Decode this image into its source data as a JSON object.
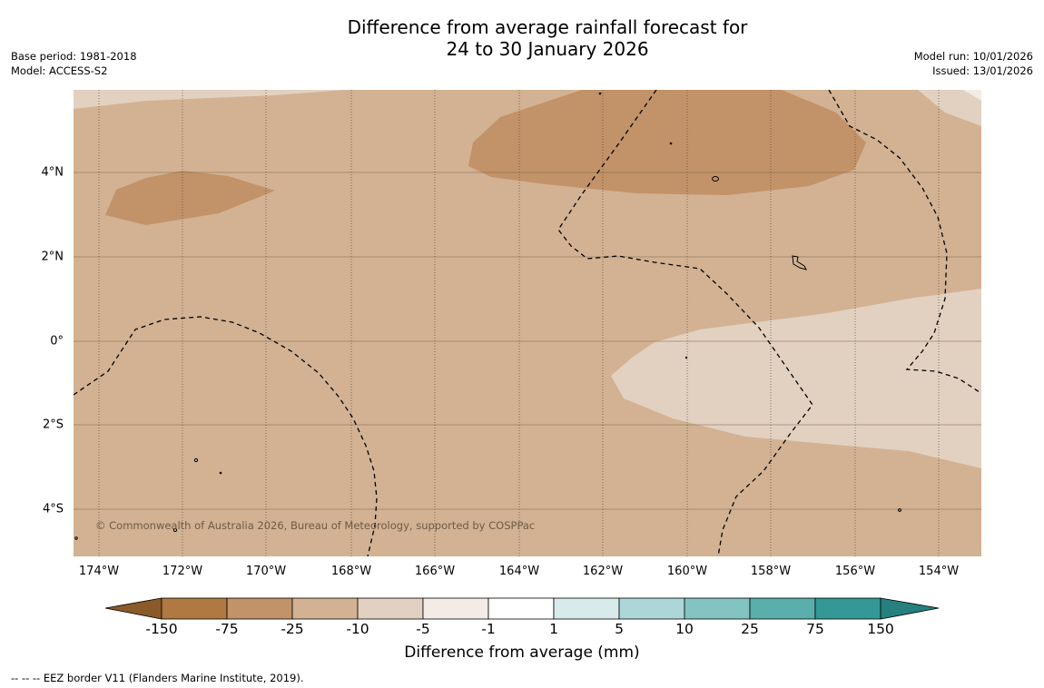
{
  "header": {
    "title_line1": "Difference from average rainfall forecast for",
    "title_line2": "24 to 30 January 2026",
    "base_period": "Base period: 1981-2018",
    "model": "Model: ACCESS-S2",
    "model_run": "Model run: 10/01/2026",
    "issued": "Issued: 13/01/2026"
  },
  "map": {
    "x_ticks": [
      "174°W",
      "172°W",
      "170°W",
      "168°W",
      "166°W",
      "164°W",
      "162°W",
      "160°W",
      "158°W",
      "156°W",
      "154°W"
    ],
    "y_ticks": [
      "4°N",
      "2°N",
      "0°",
      "2°S",
      "4°S"
    ],
    "credit": "© Commonwealth of Australia 2026, Bureau of Meteorology, supported by COSPPac"
  },
  "colorbar": {
    "labels": [
      "-150",
      "-75",
      "-25",
      "-10",
      "-5",
      "-1",
      "1",
      "5",
      "10",
      "25",
      "75",
      "150"
    ],
    "colors": [
      "#8b5a2b",
      "#b07942",
      "#c29268",
      "#d2b293",
      "#e2d1c0",
      "#f2ebe6",
      "#ffffff",
      "#d8ebea",
      "#acd7d6",
      "#83c3c1",
      "#5aaeac",
      "#349896",
      "#25807e"
    ],
    "title": "Difference from average (mm)"
  },
  "footnote": "--  --  -- EEZ border V11 (Flanders Marine Institute, 2019)."
}
